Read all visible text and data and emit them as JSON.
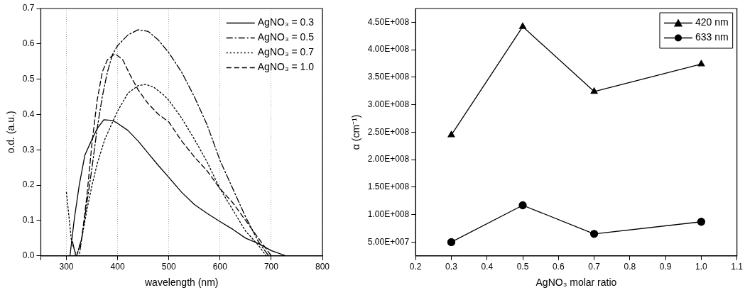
{
  "chart_data": [
    {
      "type": "line",
      "xlabel": "wavelength (nm)",
      "ylabel": "o.d. (a.u.)",
      "xlim": [
        250,
        800
      ],
      "xticks": [
        {
          "value": 250,
          "label": null
        },
        300,
        400,
        500,
        600,
        700,
        800
      ],
      "ylim": [
        0,
        0.7
      ],
      "yticks": [
        "0.0",
        0.1,
        0.2,
        0.3,
        0.4,
        0.5,
        0.6,
        0.7
      ],
      "grid": "x",
      "legend": "top right",
      "marker": "none",
      "series": [
        {
          "name": "AgNO₃ = 0.3",
          "color": "#000000",
          "line_style": "solid",
          "x": [
            307,
            315,
            325,
            336,
            350,
            360,
            373,
            390,
            400,
            420,
            440,
            460,
            480,
            500,
            525,
            550,
            575,
            600,
            625,
            650,
            675,
            700,
            729
          ],
          "values": [
            0,
            0.1,
            0.2,
            0.285,
            0.33,
            0.36,
            0.385,
            0.383,
            0.375,
            0.355,
            0.325,
            0.29,
            0.255,
            0.222,
            0.18,
            0.145,
            0.12,
            0.097,
            0.075,
            0.05,
            0.035,
            0.015,
            0
          ]
        },
        {
          "name": "AgNO₃ = 0.5",
          "color": "#000000",
          "line_style": "dashdot",
          "x": [
            312,
            318,
            325,
            335,
            350,
            360,
            370,
            380,
            390,
            400,
            420,
            440,
            460,
            480,
            500,
            525,
            550,
            575,
            600,
            625,
            650,
            675,
            695
          ],
          "values": [
            0.04,
            0.0,
            0.0,
            0.1,
            0.25,
            0.36,
            0.45,
            0.52,
            0.57,
            0.595,
            0.625,
            0.64,
            0.635,
            0.61,
            0.575,
            0.52,
            0.45,
            0.37,
            0.27,
            0.19,
            0.11,
            0.04,
            0
          ]
        },
        {
          "name": "AgNO₃ = 0.7",
          "color": "#000000",
          "line_style": "dotted",
          "x": [
            300,
            310,
            320,
            330,
            340,
            350,
            360,
            375,
            400,
            420,
            440,
            455,
            470,
            490,
            500,
            525,
            550,
            575,
            600,
            625,
            650,
            675,
            690
          ],
          "values": [
            0.18,
            0.04,
            0.0,
            0.05,
            0.13,
            0.2,
            0.26,
            0.33,
            0.41,
            0.46,
            0.482,
            0.485,
            0.478,
            0.455,
            0.44,
            0.39,
            0.33,
            0.265,
            0.19,
            0.13,
            0.07,
            0.03,
            0
          ]
        },
        {
          "name": "AgNO₃ = 1.0",
          "color": "#000000",
          "line_style": "dashed",
          "x": [
            320,
            330,
            340,
            350,
            360,
            370,
            380,
            395,
            410,
            425,
            440,
            460,
            480,
            500,
            525,
            550,
            575,
            600,
            625,
            650,
            675,
            700
          ],
          "values": [
            0.0,
            0.05,
            0.17,
            0.32,
            0.44,
            0.52,
            0.555,
            0.572,
            0.555,
            0.51,
            0.47,
            0.43,
            0.4,
            0.379,
            0.325,
            0.28,
            0.24,
            0.19,
            0.15,
            0.1,
            0.05,
            0
          ]
        }
      ]
    },
    {
      "type": "line",
      "xlabel": "AgNO₃ molar ratio",
      "ylabel": "α (cm⁻¹)",
      "xlim": [
        0.2,
        1.1
      ],
      "xticks": [
        0.2,
        0.3,
        0.4,
        0.5,
        0.6,
        0.7,
        0.8,
        0.9,
        "1.0",
        1.1
      ],
      "ylim": [
        25000000,
        475000000
      ],
      "yticks": [
        {
          "value": 50000000,
          "label": "5.00E+007"
        },
        {
          "value": 100000000,
          "label": "1.00E+008"
        },
        {
          "value": 150000000,
          "label": "1.50E+008"
        },
        {
          "value": 200000000,
          "label": "2.00E+008"
        },
        {
          "value": 250000000,
          "label": "2.50E+008"
        },
        {
          "value": 300000000,
          "label": "3.00E+008"
        },
        {
          "value": 350000000,
          "label": "3.50E+008"
        },
        {
          "value": 400000000,
          "label": "4.00E+008"
        },
        {
          "value": 450000000,
          "label": "4.50E+008"
        }
      ],
      "legend": "top right",
      "series": [
        {
          "name": "420 nm",
          "color": "#000000",
          "marker": "triangle",
          "x": [
            0.3,
            0.5,
            0.7,
            1.0
          ],
          "values": [
            245000000,
            442000000,
            324000000,
            374000000
          ]
        },
        {
          "name": "633 nm",
          "color": "#000000",
          "marker": "circle",
          "x": [
            0.3,
            0.5,
            0.7,
            1.0
          ],
          "values": [
            50000000,
            117000000,
            65000000,
            87000000
          ]
        }
      ]
    }
  ]
}
